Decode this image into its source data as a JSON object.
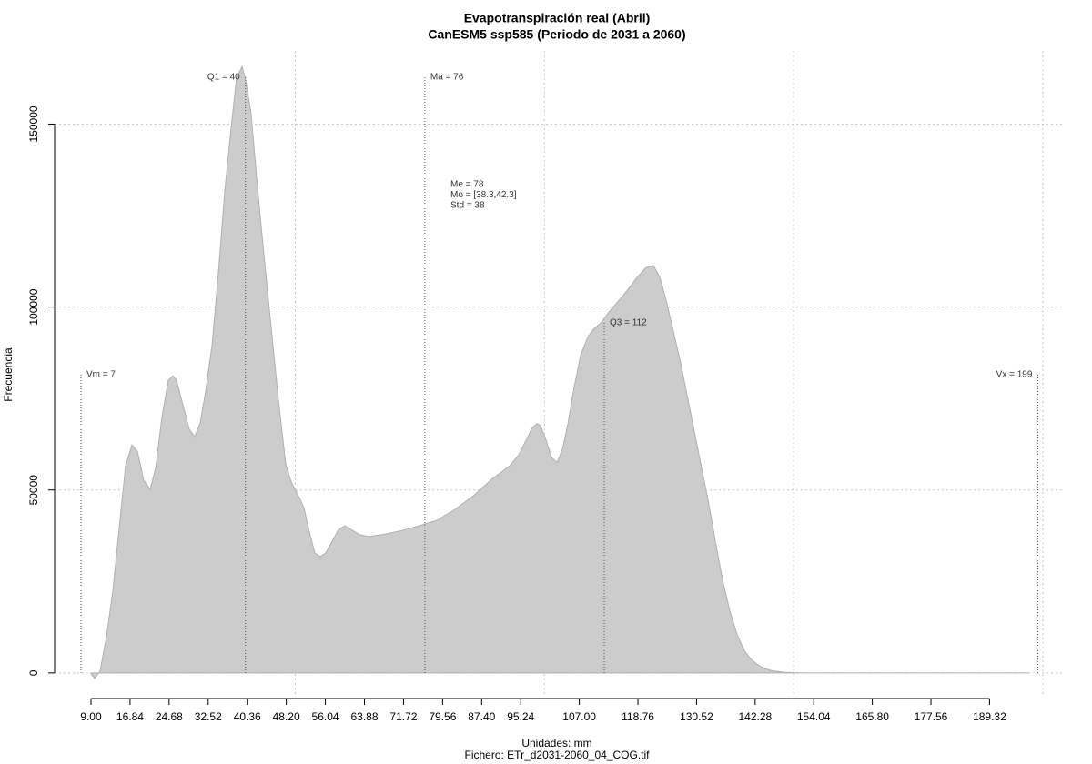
{
  "chart_data": {
    "type": "area",
    "title": "Evapotranspiración real (Abril)",
    "subtitle": "CanESM5 ssp585 (Periodo de 2031 a 2060)",
    "x_label": "Unidades: mm",
    "footer": "Fichero: ETr_d2031-2060_04_COG.tif",
    "y_label": "Frecuencia",
    "color": "#cccccc",
    "xlim": [
      1.7,
      204.4
    ],
    "ylim": [
      -6000,
      170000
    ],
    "xticks": [
      {
        "value": 9,
        "label": "9.00"
      },
      16.84,
      24.68,
      32.52,
      40.36,
      {
        "value": 48.2,
        "label": "48.20"
      },
      56.04,
      63.88,
      71.72,
      79.56,
      {
        "value": 87.4,
        "label": "87.40"
      },
      95.24,
      {
        "value": 107,
        "label": "107.00"
      },
      118.76,
      130.52,
      142.28,
      154.04,
      {
        "value": 165.8,
        "label": "165.80"
      },
      177.56,
      189.32
    ],
    "yticks": [
      0,
      50000,
      100000,
      150000
    ],
    "x_grid": [
      50,
      100,
      150,
      200
    ],
    "grid": true,
    "x": [
      9.0,
      9.73,
      10.83,
      12.11,
      13.38,
      14.66,
      15.94,
      17.22,
      18.32,
      19.59,
      20.87,
      21.97,
      23.25,
      24.53,
      25.44,
      26.17,
      27.45,
      28.73,
      29.82,
      30.92,
      32.01,
      33.29,
      34.57,
      35.85,
      37.13,
      38.22,
      39.32,
      40.05,
      41.15,
      42.24,
      43.7,
      45.16,
      46.63,
      48.09,
      49.18,
      50.64,
      51.74,
      52.84,
      53.93,
      55.03,
      56.12,
      57.4,
      58.68,
      59.96,
      61.24,
      62.88,
      64.71,
      67.45,
      71.1,
      74.75,
      78.41,
      82.06,
      85.71,
      89.37,
      93.02,
      94.85,
      96.31,
      97.59,
      98.5,
      99.23,
      100.33,
      101.42,
      102.52,
      103.62,
      104.71,
      105.8,
      107.27,
      108.73,
      109.82,
      111.28,
      113.11,
      114.94,
      116.76,
      118.59,
      120.42,
      121.88,
      123.16,
      124.44,
      125.9,
      127.36,
      128.64,
      129.92,
      131.38,
      132.84,
      134.3,
      135.76,
      137.22,
      138.68,
      140.14,
      141.6,
      143.43,
      145.25,
      147.81,
      151.46,
      155.12,
      173.38,
      197.12
    ],
    "values": [
      -250,
      -1500,
      500,
      9900,
      22400,
      39700,
      56600,
      62300,
      60600,
      52700,
      50200,
      55900,
      70000,
      80000,
      81200,
      80000,
      73300,
      66600,
      64600,
      68300,
      77000,
      89400,
      109300,
      131700,
      149000,
      162700,
      165700,
      162000,
      152800,
      135400,
      114300,
      94400,
      74500,
      57100,
      52200,
      48400,
      45200,
      38500,
      32800,
      31800,
      32800,
      36000,
      39200,
      40200,
      39200,
      37800,
      37300,
      37800,
      38800,
      40200,
      41700,
      44700,
      48400,
      52900,
      56600,
      59600,
      63600,
      67100,
      68100,
      67600,
      63600,
      58900,
      57600,
      61100,
      68100,
      77000,
      86900,
      91900,
      93900,
      95600,
      98900,
      101800,
      104800,
      108100,
      110800,
      111300,
      108100,
      101800,
      93200,
      84500,
      75800,
      67100,
      57100,
      47200,
      36000,
      25300,
      16900,
      10400,
      6000,
      3500,
      1700,
      700,
      200,
      0,
      0,
      0,
      0
    ],
    "annotations": [
      {
        "label": "Vm = 7",
        "value": 7
      },
      {
        "label": "Q1 = 40",
        "value": 40
      },
      {
        "label": "Ma = 76",
        "value": 76
      },
      {
        "label": "Q3 = 112",
        "value": 112
      },
      {
        "label": "Vx = 199",
        "value": 199
      }
    ],
    "stats_box": [
      "Me = 78",
      "Mo = [38.3,42.3]",
      "Std = 38"
    ]
  }
}
